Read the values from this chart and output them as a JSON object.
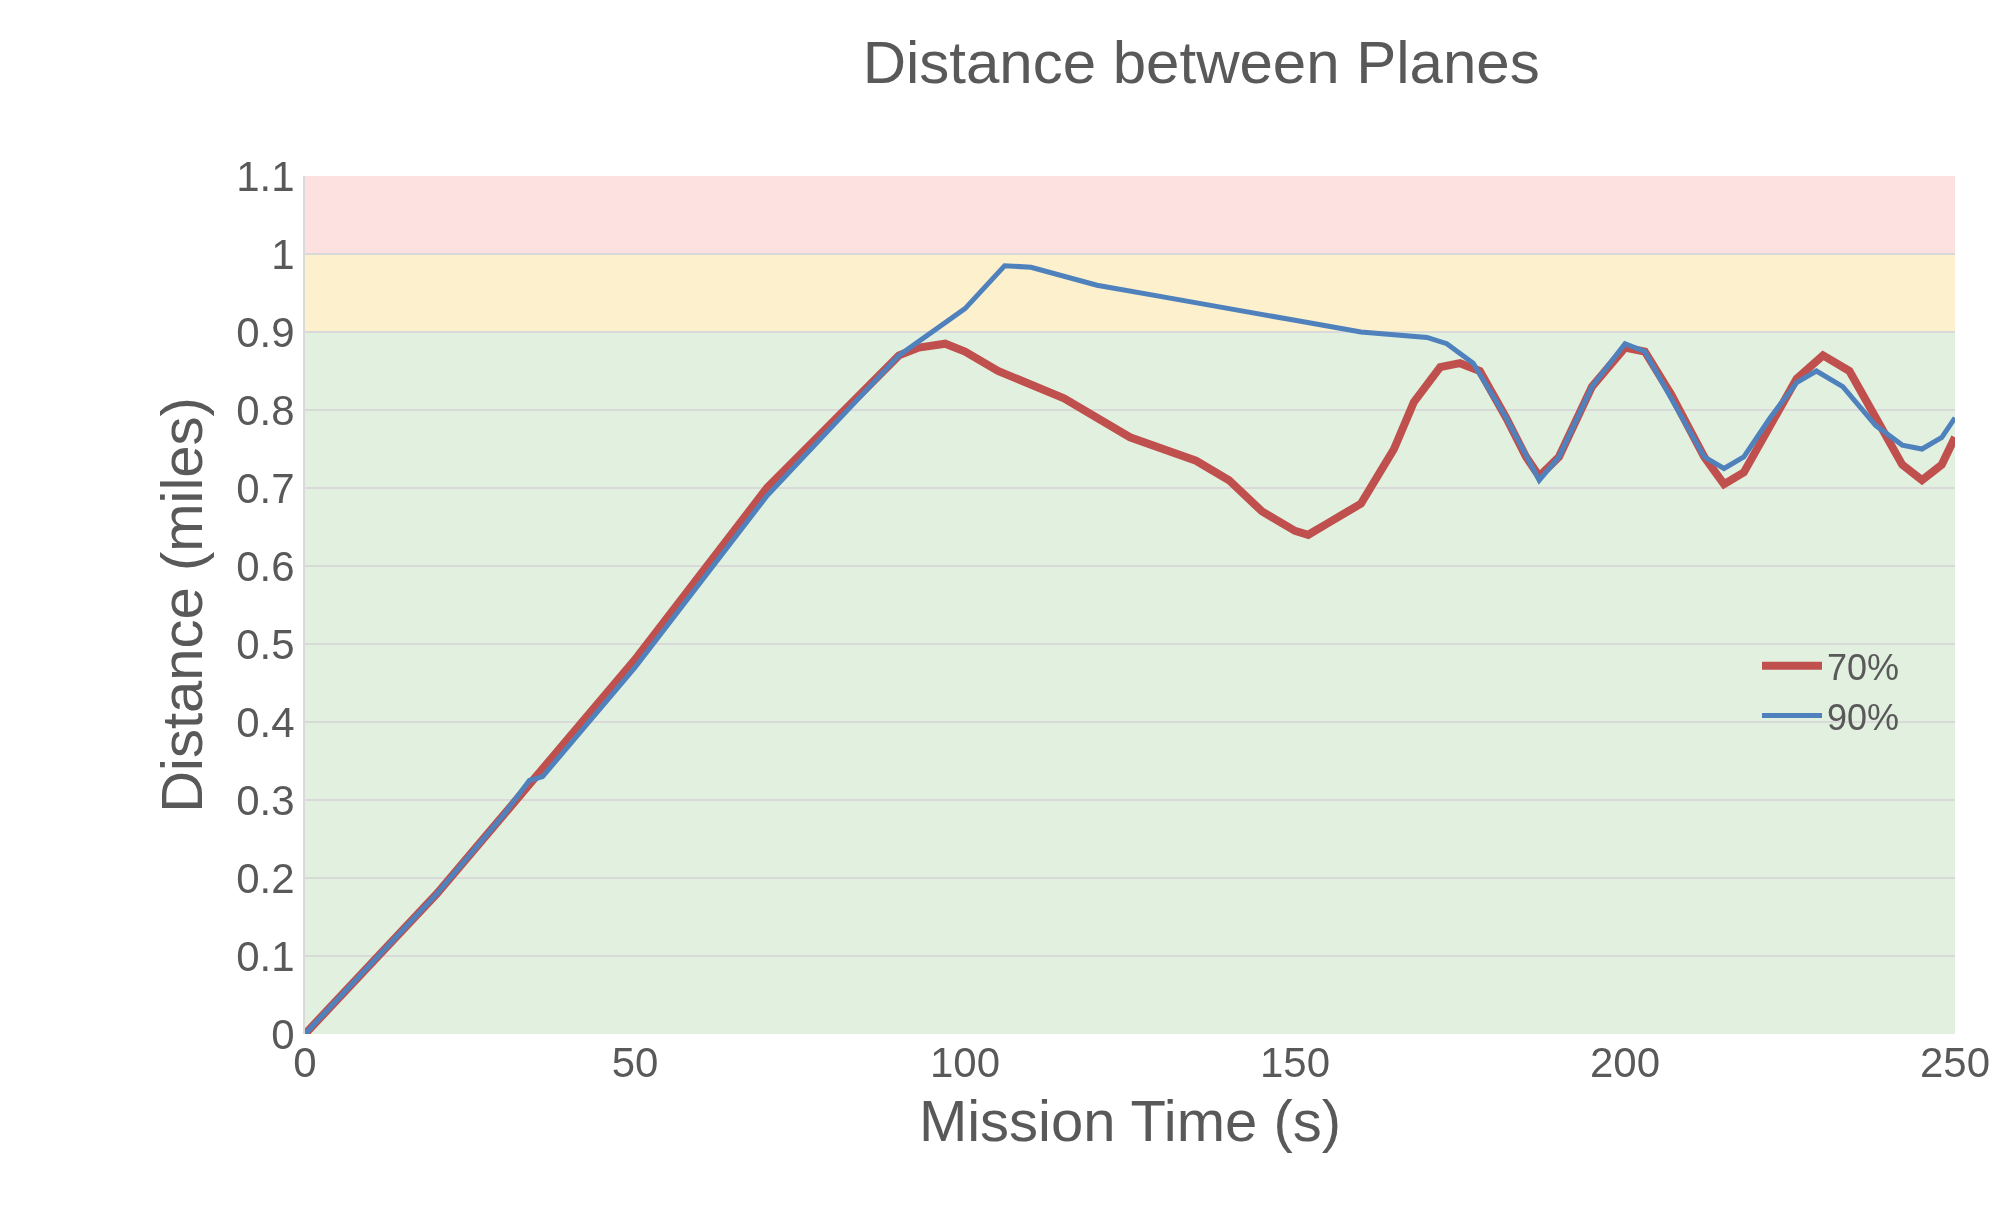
{
  "chart_data": {
    "type": "line",
    "title": "Distance between Planes",
    "xlabel": "Mission Time (s)",
    "ylabel": "Distance (miles)",
    "xlim": [
      0,
      250
    ],
    "xticks": [
      0,
      50,
      100,
      150,
      200,
      250
    ],
    "ylim": [
      0,
      1.1
    ],
    "yticks": [
      0,
      0.1,
      0.2,
      0.3,
      0.4,
      0.5,
      0.6,
      0.7,
      0.8,
      0.9,
      1,
      1.1
    ],
    "grid": "y",
    "legend": "right",
    "line_style": "solid",
    "marker": "none",
    "bands": [
      {
        "axis": "y",
        "from": 0,
        "to": 0.9,
        "color": "#e1f0df"
      },
      {
        "axis": "y",
        "from": 0.9,
        "to": 1,
        "color": "#fdf0cc"
      },
      {
        "axis": "y",
        "from": 1,
        "to": 1.1,
        "color": "#fde0e0"
      }
    ],
    "series": [
      {
        "name": "70%",
        "color": "#c0504d",
        "x": [
          0,
          10,
          20,
          30,
          34,
          50,
          70,
          90,
          93,
          97,
          100,
          105,
          115,
          125,
          135,
          140,
          145,
          150,
          152,
          155,
          160,
          165,
          168,
          172,
          175,
          178,
          182,
          185,
          187,
          190,
          195,
          200,
          203,
          207,
          212,
          215,
          218,
          222,
          226,
          230,
          234,
          238,
          242,
          245,
          248,
          250
        ],
        "values": [
          0,
          0.09,
          0.18,
          0.28,
          0.32,
          0.48,
          0.7,
          0.87,
          0.88,
          0.885,
          0.875,
          0.85,
          0.815,
          0.765,
          0.735,
          0.71,
          0.67,
          0.645,
          0.64,
          0.655,
          0.68,
          0.75,
          0.81,
          0.855,
          0.86,
          0.85,
          0.79,
          0.74,
          0.715,
          0.74,
          0.83,
          0.88,
          0.875,
          0.82,
          0.74,
          0.705,
          0.72,
          0.78,
          0.84,
          0.87,
          0.85,
          0.79,
          0.73,
          0.71,
          0.73,
          0.765
        ]
      },
      {
        "name": "90%",
        "color": "#4f81bd",
        "x": [
          0,
          10,
          20,
          30,
          34,
          36,
          50,
          70,
          90,
          100,
          106,
          110,
          120,
          130,
          140,
          150,
          160,
          170,
          173,
          177,
          182,
          187,
          190,
          195,
          200,
          203,
          208,
          212,
          215,
          218,
          222,
          226,
          229,
          233,
          238,
          242,
          245,
          248,
          250
        ],
        "values": [
          0,
          0.09,
          0.18,
          0.28,
          0.325,
          0.33,
          0.47,
          0.69,
          0.87,
          0.93,
          0.985,
          0.983,
          0.96,
          0.945,
          0.93,
          0.915,
          0.9,
          0.893,
          0.885,
          0.86,
          0.79,
          0.71,
          0.74,
          0.83,
          0.885,
          0.875,
          0.8,
          0.74,
          0.725,
          0.74,
          0.79,
          0.835,
          0.85,
          0.83,
          0.78,
          0.755,
          0.75,
          0.765,
          0.79
        ]
      }
    ]
  }
}
